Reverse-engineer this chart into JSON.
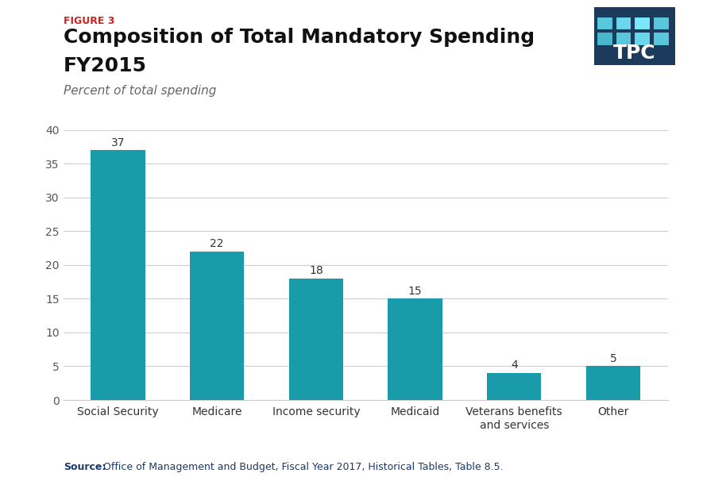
{
  "figure_label": "FIGURE 3",
  "title_line1": "Composition of Total Mandatory Spending",
  "title_line2": "FY2015",
  "subtitle": "Percent of total spending",
  "categories": [
    "Social Security",
    "Medicare",
    "Income security",
    "Medicaid",
    "Veterans benefits\nand services",
    "Other"
  ],
  "values": [
    37,
    22,
    18,
    15,
    4,
    5
  ],
  "bar_color": "#1a9baa",
  "ylim": [
    0,
    40
  ],
  "yticks": [
    0,
    5,
    10,
    15,
    20,
    25,
    30,
    35,
    40
  ],
  "source_label": "Source:",
  "source_text": " Office of Management and Budget, Fiscal Year 2017, Historical Tables, Table 8.5.",
  "figure_label_color": "#cc2222",
  "subtitle_color": "#666666",
  "source_label_color": "#1a3a6c",
  "source_text_color": "#1a3a6c",
  "background_color": "#ffffff",
  "bar_label_fontsize": 10,
  "figure_label_fontsize": 9,
  "title_fontsize": 18,
  "subtitle_fontsize": 11,
  "tick_fontsize": 10,
  "source_fontsize": 9,
  "tpc_bg_color": "#1b3a5c",
  "tpc_tile_row1": [
    "#5ac8dc",
    "#6ad8ec",
    "#7ae8f8",
    "#5ac8dc"
  ],
  "tpc_tile_row2": [
    "#4ab8cc",
    "#5ac8dc",
    "#6ad8ec",
    "#5ac8dc"
  ]
}
